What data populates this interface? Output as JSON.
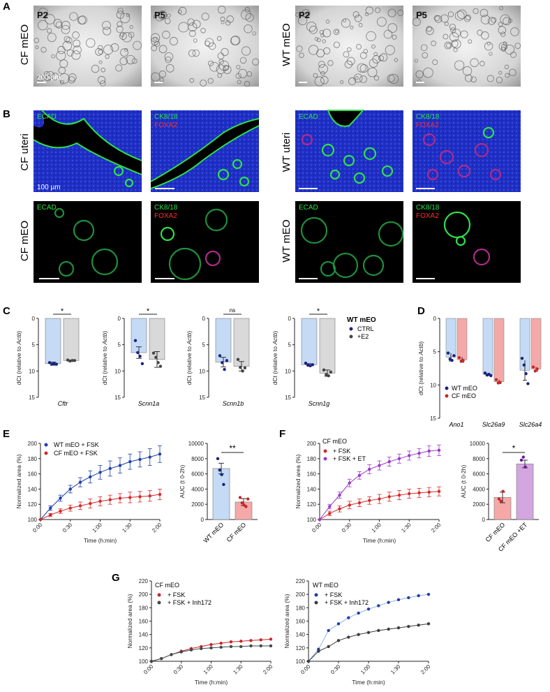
{
  "panel_A": {
    "letter": "A",
    "rows": [
      "CF mEO",
      "WT mEO"
    ],
    "passages": [
      "P2",
      "P5",
      "P2",
      "P5"
    ],
    "scale_bar": "200 µm"
  },
  "panel_B": {
    "letter": "B",
    "row_labels": [
      "CF uteri",
      "CF mEO",
      "WT uteri",
      "WT mEO"
    ],
    "stain_ecad": "ECAD",
    "stain_ck": "CK8/18",
    "stain_foxa": "FOXA2",
    "scale_bar": "100 µm"
  },
  "panel_C": {
    "letter": "C",
    "ylabel_pre": "dCt (relative to ",
    "ylabel_gene": "Actb",
    "ylabel_post": ")",
    "legend_title": "WT mEO",
    "legend_ctrl": "CTRL",
    "legend_e2": "+E2",
    "colors": {
      "ctrl": "#c5daf5",
      "e2": "#d9d9d9",
      "ctrl_dot": "#1a237e",
      "e2_dot": "#444444"
    }
  },
  "panel_D": {
    "letter": "D",
    "ylabel_pre": "dCt (relative to ",
    "ylabel_gene": "Actb",
    "ylabel_post": ")",
    "legend_wt": "WT mEO",
    "legend_cf": "CF mEO",
    "colors": {
      "wt": "#c5daf5",
      "cf": "#f4a9a8",
      "wt_dot": "#1a237e",
      "cf_dot": "#c62828"
    }
  },
  "panel_E": {
    "letter": "E",
    "legend_wt": "WT mEO + FSK",
    "legend_cf": "CF mEO +  FSK"
  },
  "panel_F": {
    "letter": "F",
    "title": "CF mEO",
    "legend_fsk": "+ FSK",
    "legend_et": "+ FSK + ET"
  },
  "panel_G": {
    "letter": "G",
    "title_cf": "CF mEO",
    "title_wt": "WT mEO",
    "legend_fsk": "+ FSK",
    "legend_inh": "+ FSK + Inh172"
  },
  "common": {
    "xlabel_time": "Time (h:min)",
    "ylabel_area": "Normalized area (%)",
    "ylabel_auc": "AUC (t 0-2h)",
    "time_ticks": [
      "0:00",
      "0:30",
      "1:00",
      "1:30",
      "2:00"
    ]
  },
  "chart_data": [
    {
      "type": "bar",
      "panel": "C",
      "gene": "Cftr",
      "categories": [
        "CTRL",
        "+E2"
      ],
      "values": [
        8.6,
        8.0
      ],
      "errors": [
        0.3,
        0.1
      ],
      "points": [
        [
          8.4,
          8.7,
          8.6,
          8.7
        ],
        [
          7.9,
          8.1,
          8.0,
          8.0
        ]
      ],
      "ylim": [
        15,
        0
      ],
      "yticks": [
        "0",
        "5",
        "10",
        "15"
      ],
      "significance": "*"
    },
    {
      "type": "bar",
      "panel": "C",
      "gene": "Scnn1a",
      "categories": [
        "CTRL",
        "+E2"
      ],
      "values": [
        6.5,
        7.8
      ],
      "errors": [
        1.1,
        1.5
      ],
      "points": [
        [
          4.2,
          6.5,
          7.2,
          8.6
        ],
        [
          6.6,
          7.4,
          8.4,
          9.1
        ]
      ],
      "ylim": [
        15,
        0
      ],
      "yticks": [
        "0",
        "5",
        "10",
        "15"
      ],
      "significance": "*"
    },
    {
      "type": "bar",
      "panel": "C",
      "gene": "Scnn1b",
      "categories": [
        "CTRL",
        "+E2"
      ],
      "values": [
        8.3,
        9.1
      ],
      "errors": [
        0.9,
        0.9
      ],
      "points": [
        [
          7.1,
          8.4,
          9.7,
          8.0
        ],
        [
          7.8,
          9.3,
          10.0,
          9.4
        ]
      ],
      "ylim": [
        15,
        0
      ],
      "yticks": [
        "0",
        "5",
        "10",
        "15"
      ],
      "significance": "ns"
    },
    {
      "type": "bar",
      "panel": "C",
      "gene": "Scnn1g",
      "categories": [
        "CTRL",
        "+E2"
      ],
      "values": [
        8.8,
        10.4
      ],
      "errors": [
        0.2,
        0.6
      ],
      "points": [
        [
          8.5,
          8.9,
          9.0,
          8.8
        ],
        [
          9.8,
          10.7,
          10.9,
          10.2
        ]
      ],
      "ylim": [
        15,
        0
      ],
      "yticks": [
        "0",
        "5",
        "10",
        "15"
      ],
      "significance": "*"
    },
    {
      "type": "bar",
      "panel": "D",
      "categories": [
        "Ano1",
        "Slc26a9",
        "Slc26a4"
      ],
      "series": [
        {
          "name": "WT mEO",
          "values": [
            5.8,
            8.4,
            7.8
          ],
          "errors": [
            0.6,
            0.2,
            1.5
          ],
          "points": [
            [
              5.2,
              6.1,
              6.3,
              5.6
            ],
            [
              8.2,
              8.5,
              8.4,
              8.6
            ],
            [
              6.0,
              7.0,
              8.3,
              9.8
            ]
          ]
        },
        {
          "name": "CF mEO",
          "values": [
            6.2,
            9.5,
            7.6
          ],
          "errors": [
            0.4,
            0.3,
            0.3
          ],
          "points": [
            [
              5.9,
              6.4,
              6.3
            ],
            [
              9.2,
              9.7,
              9.6
            ],
            [
              7.3,
              7.9,
              7.6
            ]
          ]
        }
      ],
      "ylim": [
        15,
        0
      ],
      "yticks": [
        "0",
        "5",
        "10",
        "15"
      ]
    },
    {
      "type": "line",
      "panel": "E",
      "x": [
        "0:00",
        "0:10",
        "0:20",
        "0:30",
        "0:40",
        "0:50",
        "1:00",
        "1:10",
        "1:20",
        "1:30",
        "1:40",
        "1:50",
        "2:00"
      ],
      "series": [
        {
          "name": "WT mEO + FSK",
          "values": [
            100,
            115,
            128,
            140,
            149,
            156,
            162,
            167,
            171,
            176,
            179,
            182,
            186
          ],
          "errors": [
            0,
            3,
            4,
            5,
            6,
            8,
            9,
            10,
            10,
            10,
            10,
            11,
            11
          ]
        },
        {
          "name": "CF mEO +  FSK",
          "values": [
            100,
            106,
            111,
            115,
            118,
            121,
            124,
            126,
            128,
            129,
            130,
            131,
            133
          ],
          "errors": [
            0,
            2,
            3,
            4,
            5,
            6,
            6,
            6,
            6,
            7,
            7,
            7,
            7
          ]
        }
      ],
      "ylim": [
        100,
        200
      ],
      "yticks": [
        "100",
        "120",
        "140",
        "160",
        "180",
        "200"
      ]
    },
    {
      "type": "bar",
      "panel": "E",
      "categories": [
        "WT mEO",
        "CF mEO"
      ],
      "values": [
        6700,
        2300
      ],
      "errors": [
        700,
        450
      ],
      "points": [
        [
          8000,
          6500,
          5900,
          4600
        ],
        [
          2900,
          2200,
          1900,
          1700,
          2700
        ]
      ],
      "ylim": [
        0,
        10000
      ],
      "yticks": [
        "0",
        "2000",
        "4000",
        "6000",
        "8000",
        "10000"
      ],
      "significance": "**"
    },
    {
      "type": "line",
      "panel": "F",
      "x": [
        "0:00",
        "0:10",
        "0:20",
        "0:30",
        "0:40",
        "0:50",
        "1:00",
        "1:10",
        "1:20",
        "1:30",
        "1:40",
        "1:50",
        "2:00"
      ],
      "series": [
        {
          "name": "+ FSK",
          "values": [
            100,
            108,
            114,
            119,
            122,
            125,
            127,
            130,
            132,
            134,
            135,
            136,
            137
          ],
          "errors": [
            0,
            3,
            4,
            5,
            5,
            5,
            6,
            6,
            6,
            6,
            6,
            6,
            6
          ]
        },
        {
          "name": "+ FSK + ET",
          "values": [
            100,
            117,
            132,
            148,
            158,
            166,
            171,
            176,
            180,
            184,
            187,
            190,
            191
          ],
          "errors": [
            0,
            3,
            4,
            5,
            5,
            6,
            6,
            6,
            6,
            6,
            6,
            7,
            7
          ]
        }
      ],
      "ylim": [
        100,
        200
      ],
      "yticks": [
        "100",
        "120",
        "140",
        "160",
        "180",
        "200"
      ]
    },
    {
      "type": "bar",
      "panel": "F",
      "categories": [
        "CF mEO",
        "CF mEO +ET"
      ],
      "values": [
        2900,
        7300
      ],
      "errors": [
        700,
        500
      ],
      "points": [
        [
          2700,
          2400,
          3700
        ],
        [
          7800,
          8200,
          6900
        ]
      ],
      "ylim": [
        0,
        10000
      ],
      "yticks": [
        "0",
        "2000",
        "4000",
        "6000",
        "8000",
        "10000"
      ],
      "significance": "*"
    },
    {
      "type": "line",
      "panel": "G-CF",
      "x": [
        "0:00",
        "0:10",
        "0:20",
        "0:30",
        "0:40",
        "0:50",
        "1:00",
        "1:10",
        "1:20",
        "1:30",
        "1:40",
        "1:50",
        "2:00"
      ],
      "series": [
        {
          "name": "+ FSK",
          "values": [
            100,
            104,
            110,
            115,
            119,
            122,
            125,
            127,
            129,
            130,
            131,
            132,
            133
          ]
        },
        {
          "name": "+ FSK + Inh172",
          "values": [
            100,
            104,
            110,
            114,
            117,
            119,
            120,
            121,
            122,
            122,
            123,
            123,
            123
          ]
        }
      ],
      "ylim": [
        100,
        220
      ],
      "yticks": [
        "100",
        "120",
        "140",
        "160",
        "180",
        "200",
        "220"
      ]
    },
    {
      "type": "line",
      "panel": "G-WT",
      "x": [
        "0:00",
        "0:10",
        "0:20",
        "0:30",
        "0:40",
        "0:50",
        "1:00",
        "1:10",
        "1:20",
        "1:30",
        "1:40",
        "1:50",
        "2:00"
      ],
      "series": [
        {
          "name": "+ FSK",
          "values": [
            100,
            118,
            146,
            156,
            165,
            172,
            178,
            183,
            188,
            192,
            195,
            198,
            200
          ]
        },
        {
          "name": "+ FSK + Inh172",
          "values": [
            100,
            115,
            122,
            131,
            136,
            140,
            143,
            146,
            148,
            150,
            152,
            154,
            156
          ]
        }
      ],
      "ylim": [
        100,
        220
      ],
      "yticks": [
        "100",
        "120",
        "140",
        "160",
        "180",
        "200",
        "220"
      ]
    }
  ]
}
